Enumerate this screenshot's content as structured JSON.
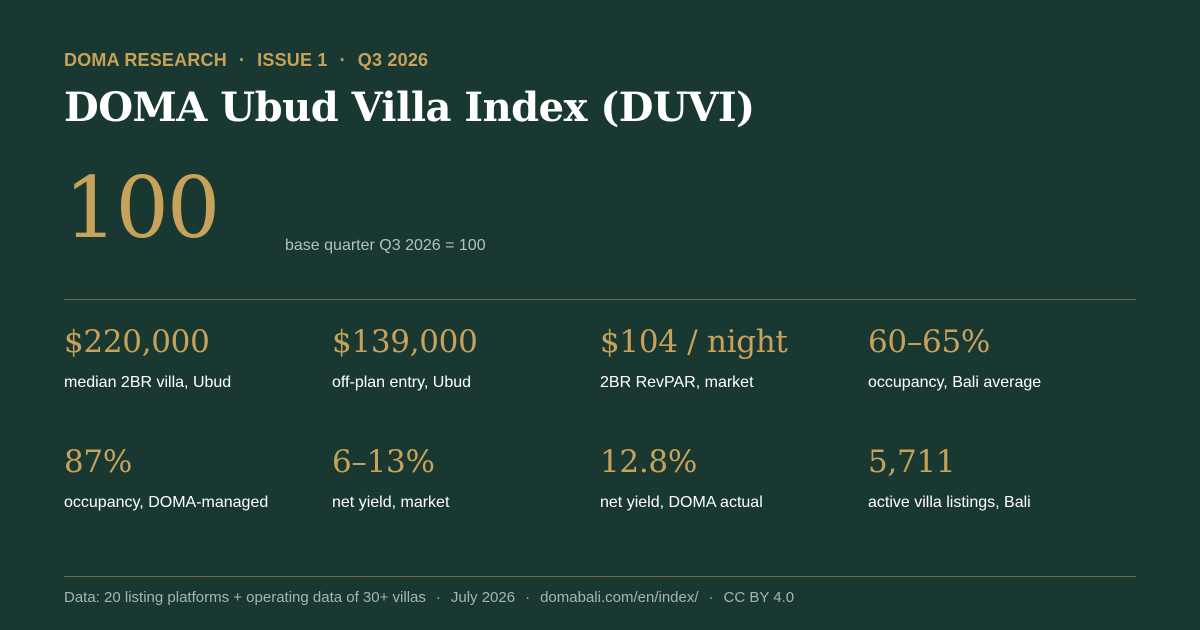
{
  "header": {
    "publisher": "DOMA RESEARCH",
    "issue": "ISSUE 1",
    "quarter": "Q3 2026",
    "separator": "·"
  },
  "title": "DOMA Ubud Villa Index (DUVI)",
  "hero": {
    "value": "100",
    "caption": "base quarter Q3 2026 = 100"
  },
  "stats": [
    {
      "value": "$220,000",
      "label": "median 2BR villa, Ubud"
    },
    {
      "value": "$139,000",
      "label": "off-plan entry, Ubud"
    },
    {
      "value": "$104 / night",
      "label": "2BR RevPAR, market"
    },
    {
      "value": "60–65%",
      "label": "occupancy, Bali average"
    },
    {
      "value": "87%",
      "label": "occupancy, DOMA-managed"
    },
    {
      "value": "6–13%",
      "label": "net yield, market"
    },
    {
      "value": "12.8%",
      "label": "net yield, DOMA actual"
    },
    {
      "value": "5,711",
      "label": "active villa listings, Bali"
    }
  ],
  "footer": {
    "source": "Data: 20 listing platforms + operating data of 30+ villas",
    "date": "July 2026",
    "url": "domabali.com/en/index/",
    "license": "CC BY 4.0",
    "separator": "·"
  },
  "colors": {
    "background": "#193832",
    "accent_gold": "#c6a25a",
    "text_white": "#ffffff",
    "text_muted": "#b6c0bb",
    "rule": "#6b6a4a"
  }
}
